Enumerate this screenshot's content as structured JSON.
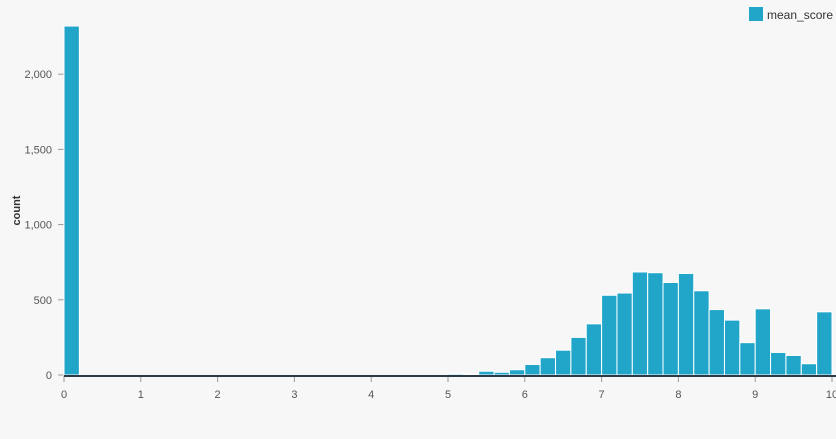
{
  "chart_data": {
    "type": "bar",
    "title": "",
    "xlabel": "",
    "ylabel": "count",
    "xlim": [
      0,
      10
    ],
    "ylim": [
      0,
      2400
    ],
    "x_ticks": [
      0,
      1,
      2,
      3,
      4,
      5,
      6,
      7,
      8,
      9,
      10
    ],
    "x_tick_labels": [
      "0",
      "1",
      "2",
      "3",
      "4",
      "5",
      "6",
      "7",
      "8",
      "9",
      "10"
    ],
    "y_ticks": [
      0,
      500,
      1000,
      1500,
      2000
    ],
    "y_tick_labels": [
      "0",
      "500",
      "1,000",
      "1,500",
      "2,000"
    ],
    "grid": false,
    "legend_position": "top-right",
    "bin_width": 0.2,
    "series": [
      {
        "name": "mean_score",
        "color": "#21a6c9",
        "bins_start": [
          0,
          0.2,
          0.4,
          0.6,
          0.8,
          1,
          1.2,
          1.4,
          1.6,
          1.8,
          2,
          2.2,
          2.4,
          2.6,
          2.8,
          3,
          3.2,
          3.4,
          3.6,
          3.8,
          4,
          4.2,
          4.4,
          4.6,
          4.8,
          5,
          5.2,
          5.4,
          5.6,
          5.8,
          6,
          6.2,
          6.4,
          6.6,
          6.8,
          7,
          7.2,
          7.4,
          7.6,
          7.8,
          8,
          8.2,
          8.4,
          8.6,
          8.8,
          9,
          9.2,
          9.4,
          9.6,
          9.8
        ],
        "values": [
          2320,
          0,
          0,
          0,
          0,
          0,
          0,
          0,
          0,
          0,
          0,
          0,
          0,
          0,
          0,
          0,
          0,
          0,
          0,
          0,
          0,
          0,
          0,
          0,
          0,
          8,
          5,
          25,
          18,
          35,
          70,
          115,
          165,
          250,
          340,
          530,
          545,
          685,
          680,
          615,
          675,
          560,
          435,
          365,
          215,
          440,
          150,
          130,
          75,
          420
        ]
      }
    ]
  }
}
